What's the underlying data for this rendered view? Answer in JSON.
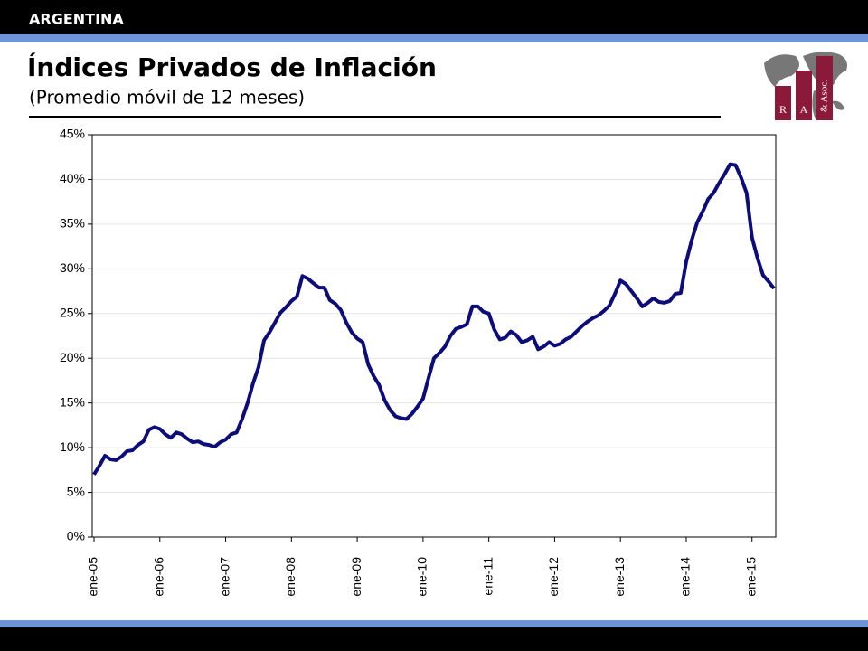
{
  "header": "ARGENTINA",
  "logo": {
    "letters": [
      "R",
      "A",
      "& Asoc."
    ]
  },
  "chart_data": {
    "type": "line",
    "title": "Índices Privados de Inflación",
    "subtitle": "(Promedio móvil de 12 meses)",
    "color": "#0c0c7a",
    "grid": true,
    "ylim": [
      0,
      45
    ],
    "yticks": [
      {
        "value": 0,
        "label": "0%"
      },
      {
        "value": 5,
        "label": "5%"
      },
      {
        "value": 10,
        "label": "10%"
      },
      {
        "value": 15,
        "label": "15%"
      },
      {
        "value": 20,
        "label": "20%"
      },
      {
        "value": 25,
        "label": "25%"
      },
      {
        "value": 30,
        "label": "30%"
      },
      {
        "value": 35,
        "label": "35%"
      },
      {
        "value": 40,
        "label": "40%"
      },
      {
        "value": 45,
        "label": "45%"
      }
    ],
    "categories": [
      "ene-05",
      null,
      null,
      null,
      null,
      null,
      null,
      null,
      null,
      null,
      null,
      null,
      "ene-06",
      null,
      null,
      null,
      null,
      null,
      null,
      null,
      null,
      null,
      null,
      null,
      "ene-07",
      null,
      null,
      null,
      null,
      null,
      null,
      null,
      null,
      null,
      null,
      null,
      "ene-08",
      null,
      null,
      null,
      null,
      null,
      null,
      null,
      null,
      null,
      null,
      null,
      "ene-09",
      null,
      null,
      null,
      null,
      null,
      null,
      null,
      null,
      null,
      null,
      null,
      "ene-10",
      null,
      null,
      null,
      null,
      null,
      null,
      null,
      null,
      null,
      null,
      null,
      "ene-11",
      null,
      null,
      null,
      null,
      null,
      null,
      null,
      null,
      null,
      null,
      null,
      "ene-12",
      null,
      null,
      null,
      null,
      null,
      null,
      null,
      null,
      null,
      null,
      null,
      "ene-13",
      null,
      null,
      null,
      null,
      null,
      null,
      null,
      null,
      null,
      null,
      null,
      "ene-14",
      null,
      null,
      null,
      null,
      null,
      null,
      null,
      null,
      null,
      null,
      null,
      "ene-15",
      null,
      null,
      null,
      null
    ],
    "values": [
      7.0,
      8.0,
      9.1,
      8.7,
      8.6,
      9.0,
      9.6,
      9.7,
      10.3,
      10.7,
      12.0,
      12.3,
      12.1,
      11.5,
      11.1,
      11.7,
      11.5,
      11.0,
      10.6,
      10.7,
      10.4,
      10.3,
      10.1,
      10.6,
      10.9,
      11.5,
      11.7,
      13.2,
      15.0,
      17.2,
      19.0,
      22.0,
      22.9,
      24.0,
      25.1,
      25.7,
      26.4,
      26.9,
      29.2,
      28.9,
      28.4,
      27.9,
      27.9,
      26.5,
      26.1,
      25.4,
      24.0,
      22.9,
      22.2,
      21.8,
      19.3,
      18.0,
      17.0,
      15.3,
      14.2,
      13.5,
      13.3,
      13.2,
      13.8,
      14.6,
      15.5,
      17.8,
      20.0,
      20.6,
      21.3,
      22.5,
      23.3,
      23.5,
      23.8,
      25.8,
      25.8,
      25.2,
      25.0,
      23.2,
      22.1,
      22.3,
      23.0,
      22.6,
      21.8,
      22.0,
      22.4,
      21.0,
      21.3,
      21.8,
      21.4,
      21.6,
      22.1,
      22.4,
      23.0,
      23.6,
      24.1,
      24.5,
      24.8,
      25.3,
      25.9,
      27.2,
      28.7,
      28.3,
      27.5,
      26.7,
      25.8,
      26.2,
      26.7,
      26.3,
      26.2,
      26.4,
      27.2,
      27.3,
      30.8,
      33.2,
      35.2,
      36.4,
      37.8,
      38.5,
      39.6,
      40.6,
      41.7,
      41.6,
      40.2,
      38.5,
      33.5,
      31.2,
      29.3,
      28.6,
      27.8
    ]
  }
}
